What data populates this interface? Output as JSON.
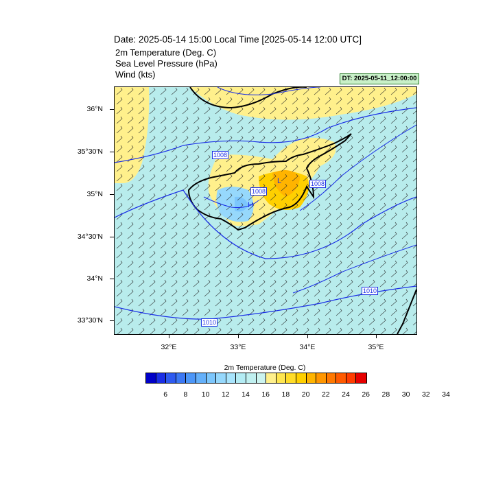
{
  "header": {
    "title": "Date: 2025-05-14  15:00 Local Time [2025-05-14  12:00 UTC]",
    "line1": "2m Temperature (Deg. C)",
    "line2": "Sea Level Pressure   (hPa)",
    "line3": "Wind   (kts)",
    "dt_badge": "DT: 2025-05-11_12:00:00"
  },
  "map": {
    "lat_labels": [
      "36°N",
      "35°30'N",
      "35°N",
      "34°30'N",
      "34°N",
      "33°30'N"
    ],
    "lon_labels": [
      "32°E",
      "33°E",
      "34°E",
      "35°E"
    ],
    "isobar_labels": [
      "1008",
      "1008",
      "1008",
      "1010",
      "1010"
    ],
    "low_marker": "L",
    "high_marker": "H"
  },
  "colorbar": {
    "title": "2m Temperature (Deg. C)",
    "labels": [
      "6",
      "8",
      "10",
      "12",
      "14",
      "16",
      "18",
      "20",
      "22",
      "24",
      "26",
      "28",
      "30",
      "32",
      "34"
    ],
    "colors": [
      "#0000c8",
      "#1a2ee6",
      "#2e5af0",
      "#3c78f4",
      "#4c96f8",
      "#64b0fa",
      "#7cc6fc",
      "#96d8fc",
      "#a8e4fc",
      "#b4ecf4",
      "#c0f0f0",
      "#ccf4f0",
      "#fff08c",
      "#ffe650",
      "#ffdc28",
      "#ffd000",
      "#ffb400",
      "#ff9600",
      "#ff7800",
      "#ff5a00",
      "#ff3c00",
      "#e60000"
    ]
  }
}
